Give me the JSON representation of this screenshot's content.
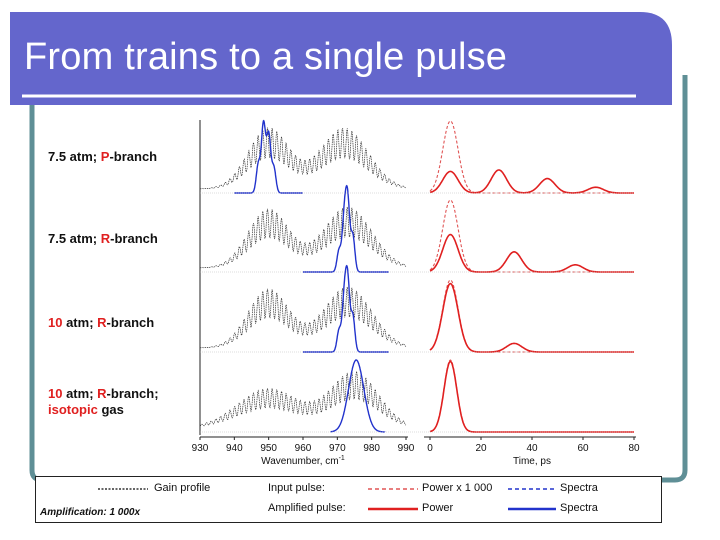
{
  "slide": {
    "title": "From trains to a single pulse",
    "colors": {
      "title_bar": "#6466cc",
      "frame": "#5f8f96",
      "gain": "#333333",
      "input": "#e05555",
      "amplified": "#e02020",
      "spectra": "#2233cc"
    }
  },
  "rows": [
    {
      "pressure": "7.5 atm;",
      "branch_prefix": "P",
      "branch_suffix": "-branch",
      "extra": "",
      "extra2": ""
    },
    {
      "pressure": "7.5 atm;",
      "branch_prefix": "R",
      "branch_suffix": "-branch",
      "extra": "",
      "extra2": ""
    },
    {
      "pressure": "10",
      "pressure_suffix": " atm;",
      "branch_prefix": "R",
      "branch_suffix": "-branch",
      "extra": "",
      "extra2": ""
    },
    {
      "pressure": "10",
      "pressure_suffix": " atm;",
      "branch_prefix": "R",
      "branch_suffix": "-branch;",
      "extra": "isotopic",
      "extra2": " gas"
    }
  ],
  "axes": {
    "wavenumber": {
      "ticks": [
        "930",
        "940",
        "950",
        "960",
        "970",
        "980",
        "990"
      ],
      "label": "Wavenumber, cm",
      "label_sup": "-1"
    },
    "time": {
      "ticks": [
        "0",
        "20",
        "40",
        "60",
        "80"
      ],
      "label": "Time, ps"
    }
  },
  "legend": {
    "gain": "Gain profile",
    "input_pulse": "Input pulse:",
    "power_x": "Power x 1 000",
    "spectra_1": "Spectra",
    "amplified_pulse": "Amplified pulse:",
    "power": "Power",
    "spectra_2": "Spectra",
    "amplification": "Amplification: 1 000x"
  }
}
